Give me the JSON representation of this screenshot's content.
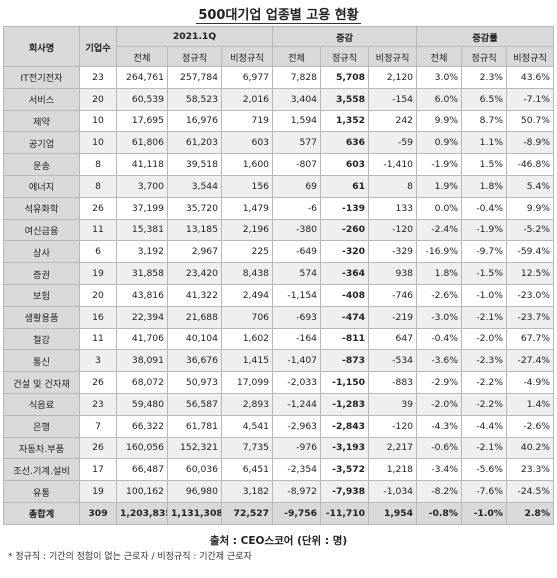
{
  "title": "500대기업 업종별 고용 현황",
  "headers": {
    "company": "회사명",
    "count": "기업수",
    "group1": "2021.1Q",
    "group2": "증감",
    "group3": "증감률",
    "total": "전체",
    "regular": "정규직",
    "nonregular": "비정규직"
  },
  "rows": [
    {
      "name": "IT전기전자",
      "count": "23",
      "total": "264,761",
      "regular": "257,784",
      "nonreg": "6,977",
      "d_total": "7,828",
      "d_regular": "5,708",
      "d_nonreg": "2,120",
      "r_total": "3.0%",
      "r_regular": "2.3%",
      "r_nonreg": "43.6%"
    },
    {
      "name": "서비스",
      "count": "20",
      "total": "60,539",
      "regular": "58,523",
      "nonreg": "2,016",
      "d_total": "3,404",
      "d_regular": "3,558",
      "d_nonreg": "-154",
      "r_total": "6.0%",
      "r_regular": "6.5%",
      "r_nonreg": "-7.1%"
    },
    {
      "name": "제약",
      "count": "10",
      "total": "17,695",
      "regular": "16,976",
      "nonreg": "719",
      "d_total": "1,594",
      "d_regular": "1,352",
      "d_nonreg": "242",
      "r_total": "9.9%",
      "r_regular": "8.7%",
      "r_nonreg": "50.7%"
    },
    {
      "name": "공기업",
      "count": "10",
      "total": "61,806",
      "regular": "61,203",
      "nonreg": "603",
      "d_total": "577",
      "d_regular": "636",
      "d_nonreg": "-59",
      "r_total": "0.9%",
      "r_regular": "1.1%",
      "r_nonreg": "-8.9%"
    },
    {
      "name": "운송",
      "count": "8",
      "total": "41,118",
      "regular": "39,518",
      "nonreg": "1,600",
      "d_total": "-807",
      "d_regular": "603",
      "d_nonreg": "-1,410",
      "r_total": "-1.9%",
      "r_regular": "1.5%",
      "r_nonreg": "-46.8%"
    },
    {
      "name": "에너지",
      "count": "8",
      "total": "3,700",
      "regular": "3,544",
      "nonreg": "156",
      "d_total": "69",
      "d_regular": "61",
      "d_nonreg": "8",
      "r_total": "1.9%",
      "r_regular": "1.8%",
      "r_nonreg": "5.4%"
    },
    {
      "name": "석유화학",
      "count": "26",
      "total": "37,199",
      "regular": "35,720",
      "nonreg": "1,479",
      "d_total": "-6",
      "d_regular": "-139",
      "d_nonreg": "133",
      "r_total": "0.0%",
      "r_regular": "-0.4%",
      "r_nonreg": "9.9%"
    },
    {
      "name": "여신금융",
      "count": "11",
      "total": "15,381",
      "regular": "13,185",
      "nonreg": "2,196",
      "d_total": "-380",
      "d_regular": "-260",
      "d_nonreg": "-120",
      "r_total": "-2.4%",
      "r_regular": "-1.9%",
      "r_nonreg": "-5.2%"
    },
    {
      "name": "상사",
      "count": "6",
      "total": "3,192",
      "regular": "2,967",
      "nonreg": "225",
      "d_total": "-649",
      "d_regular": "-320",
      "d_nonreg": "-329",
      "r_total": "-16.9%",
      "r_regular": "-9.7%",
      "r_nonreg": "-59.4%"
    },
    {
      "name": "증권",
      "count": "19",
      "total": "31,858",
      "regular": "23,420",
      "nonreg": "8,438",
      "d_total": "574",
      "d_regular": "-364",
      "d_nonreg": "938",
      "r_total": "1.8%",
      "r_regular": "-1.5%",
      "r_nonreg": "12.5%"
    },
    {
      "name": "보험",
      "count": "20",
      "total": "43,816",
      "regular": "41,322",
      "nonreg": "2,494",
      "d_total": "-1,154",
      "d_regular": "-408",
      "d_nonreg": "-746",
      "r_total": "-2.6%",
      "r_regular": "-1.0%",
      "r_nonreg": "-23.0%"
    },
    {
      "name": "생활용품",
      "count": "16",
      "total": "22,394",
      "regular": "21,688",
      "nonreg": "706",
      "d_total": "-693",
      "d_regular": "-474",
      "d_nonreg": "-219",
      "r_total": "-3.0%",
      "r_regular": "-2.1%",
      "r_nonreg": "-23.7%"
    },
    {
      "name": "철강",
      "count": "11",
      "total": "41,706",
      "regular": "40,104",
      "nonreg": "1,602",
      "d_total": "-164",
      "d_regular": "-811",
      "d_nonreg": "647",
      "r_total": "-0.4%",
      "r_regular": "-2.0%",
      "r_nonreg": "67.7%"
    },
    {
      "name": "통신",
      "count": "3",
      "total": "38,091",
      "regular": "36,676",
      "nonreg": "1,415",
      "d_total": "-1,407",
      "d_regular": "-873",
      "d_nonreg": "-534",
      "r_total": "-3.6%",
      "r_regular": "-2.3%",
      "r_nonreg": "-27.4%"
    },
    {
      "name": "건설 및 건자재",
      "count": "26",
      "total": "68,072",
      "regular": "50,973",
      "nonreg": "17,099",
      "d_total": "-2,033",
      "d_regular": "-1,150",
      "d_nonreg": "-883",
      "r_total": "-2.9%",
      "r_regular": "-2.2%",
      "r_nonreg": "-4.9%"
    },
    {
      "name": "식음료",
      "count": "23",
      "total": "59,480",
      "regular": "56,587",
      "nonreg": "2,893",
      "d_total": "-1,244",
      "d_regular": "-1,283",
      "d_nonreg": "39",
      "r_total": "-2.0%",
      "r_regular": "-2.2%",
      "r_nonreg": "1.4%"
    },
    {
      "name": "은행",
      "count": "7",
      "total": "66,322",
      "regular": "61,781",
      "nonreg": "4,541",
      "d_total": "-2,963",
      "d_regular": "-2,843",
      "d_nonreg": "-120",
      "r_total": "-4.3%",
      "r_regular": "-4.4%",
      "r_nonreg": "-2.6%"
    },
    {
      "name": "자동차.부품",
      "count": "26",
      "total": "160,056",
      "regular": "152,321",
      "nonreg": "7,735",
      "d_total": "-976",
      "d_regular": "-3,193",
      "d_nonreg": "2,217",
      "r_total": "-0.6%",
      "r_regular": "-2.1%",
      "r_nonreg": "40.2%"
    },
    {
      "name": "조선.기계.설비",
      "count": "17",
      "total": "66,487",
      "regular": "60,036",
      "nonreg": "6,451",
      "d_total": "-2,354",
      "d_regular": "-3,572",
      "d_nonreg": "1,218",
      "r_total": "-3.4%",
      "r_regular": "-5.6%",
      "r_nonreg": "23.3%"
    },
    {
      "name": "유통",
      "count": "19",
      "total": "100,162",
      "regular": "96,980",
      "nonreg": "3,182",
      "d_total": "-8,972",
      "d_regular": "-7,938",
      "d_nonreg": "-1,034",
      "r_total": "-8.2%",
      "r_regular": "-7.6%",
      "r_nonreg": "-24.5%"
    }
  ],
  "totals": {
    "name": "총합계",
    "count": "309",
    "total": "1,203,835",
    "regular": "1,131,308",
    "nonreg": "72,527",
    "d_total": "-9,756",
    "d_regular": "-11,710",
    "d_nonreg": "1,954",
    "r_total": "-0.8%",
    "r_regular": "-1.0%",
    "r_nonreg": "2.8%"
  },
  "source": "출처 : CEO스코어 (단위 : 명)",
  "note": "* 정규직 : 기간의 정함이 없는 근로자 / 비정규직 : 기간제 근로자"
}
